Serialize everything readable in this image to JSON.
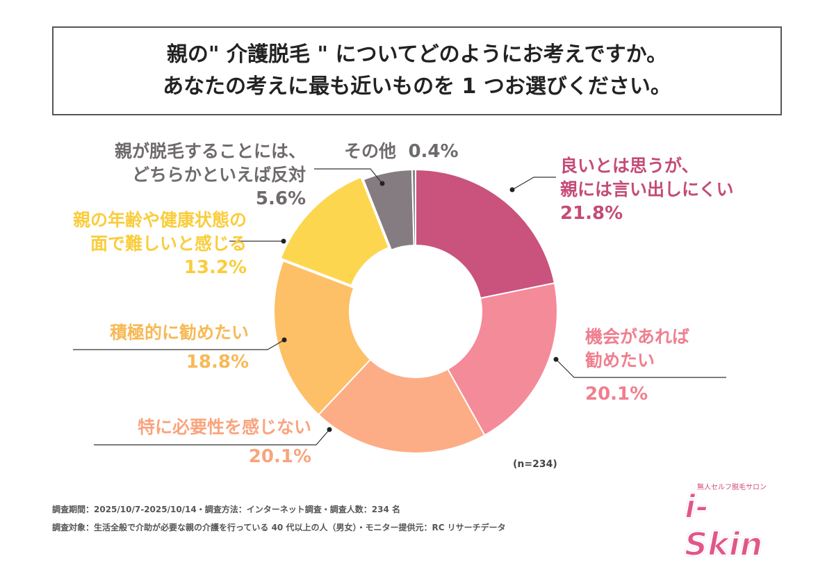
{
  "title": {
    "line1": "親の\" 介護脱毛 \" についてどのようにお考えですか。",
    "line2": "あなたの考えに最も近いものを 1 つお選びください。"
  },
  "chart_data": {
    "type": "pie",
    "donut": true,
    "start": "top, clockwise",
    "slices": [
      {
        "label": "良いとは思うが、親には言い出しにくい",
        "line1": "良いとは思うが、",
        "line2": "親には言い出しにくい",
        "value": 21.8,
        "pct": "21.8%",
        "color": "#c9537d",
        "text_color": "#c44b77"
      },
      {
        "label": "機会があれば勧めたい",
        "line1": "機会があれば",
        "line2": "勧めたい",
        "value": 20.1,
        "pct": "20.1%",
        "color": "#f48b99",
        "text_color": "#ef7f8f"
      },
      {
        "label": "特に必要性を感じない",
        "line1": "特に必要性を感じない",
        "value": 20.1,
        "pct": "20.1%",
        "color": "#fdad86",
        "text_color": "#f9a47e"
      },
      {
        "label": "積極的に勧めたい",
        "line1": "積極的に勧めたい",
        "value": 18.8,
        "pct": "18.8%",
        "color": "#fdc066",
        "text_color": "#f7b955"
      },
      {
        "label": "親の年齢や健康状態の面で難しいと感じる",
        "line1": "親の年齢や健康状態の",
        "line2": "面で難しいと感じる",
        "value": 13.2,
        "pct": "13.2%",
        "color": "#fdd650",
        "text_color": "#f9cd3c"
      },
      {
        "label": "親が脱毛することには、どちらかといえば反対",
        "line1": "親が脱毛することには、",
        "line2": "どちらかといえば反対",
        "value": 5.6,
        "pct": "5.6%",
        "color": "#847c80",
        "text_color": "#6f6a6d"
      },
      {
        "label": "その他",
        "line1": "その他",
        "value": 0.4,
        "pct": "0.4%",
        "color": "#8a8387",
        "text_color": "#6f6a6d"
      }
    ]
  },
  "sample": "(n=234)",
  "footer": {
    "line1": "調査期間：2025/10/7-2025/10/14・調査方法：インターネット調査・調査人数：234 名",
    "line2": "調査対象：生活全般で介助が必要な親の介護を行っている 40 代以上の人（男女）・モニター提供元：RC リサーチデータ"
  },
  "logo": {
    "sub": "無人セルフ脱毛サロン",
    "brand": "i-Skin"
  }
}
